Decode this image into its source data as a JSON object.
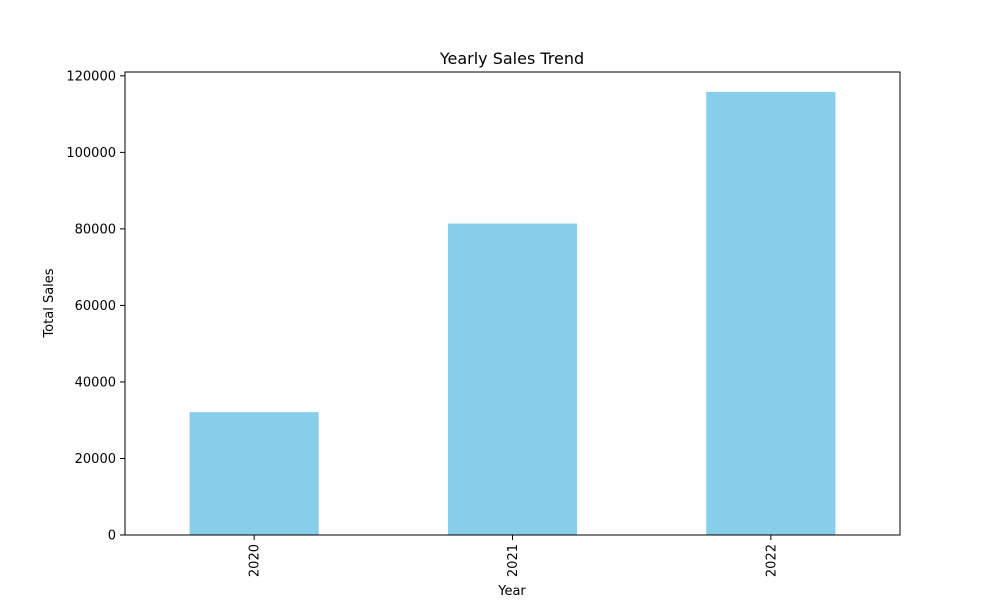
{
  "chart_data": {
    "type": "bar",
    "title": "Yearly Sales Trend",
    "xlabel": "Year",
    "ylabel": "Total Sales",
    "categories": [
      "2020",
      "2021",
      "2022"
    ],
    "values": [
      32100,
      81400,
      115800
    ],
    "ylim": [
      0,
      121000
    ],
    "yticks": [
      0,
      20000,
      40000,
      60000,
      80000,
      100000,
      120000
    ],
    "ytick_labels": [
      "0",
      "20000",
      "40000",
      "60000",
      "80000",
      "100000",
      "120000"
    ],
    "xtick_rotation": "vertical",
    "grid": false,
    "legend": "none",
    "bar_color": "#87ceeb",
    "axis_color": "#000000"
  }
}
